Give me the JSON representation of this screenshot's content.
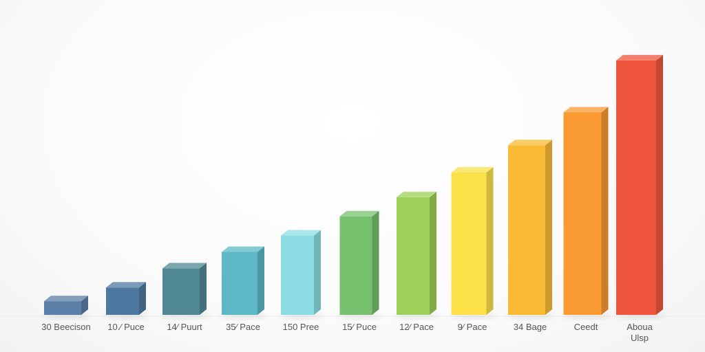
{
  "chart_data": {
    "type": "bar",
    "style": "3d-columns",
    "categories": [
      [
        "30 Beecison"
      ],
      [
        "10.⁄ Puce"
      ],
      [
        "14⁄ Puurt"
      ],
      [
        "35⁄ Pace"
      ],
      [
        "150 Pree"
      ],
      [
        "15⁄ Puce"
      ],
      [
        "12⁄ Pace"
      ],
      [
        "9⁄ Pace"
      ],
      [
        "34 Bage"
      ],
      [
        "Ceedt"
      ],
      [
        "Aboua",
        "Ulsp"
      ]
    ],
    "values": [
      5,
      10,
      17,
      23,
      29,
      36,
      43,
      52,
      62,
      74,
      93
    ],
    "colors": [
      "#5b7fa6",
      "#4d79a0",
      "#4f8893",
      "#5cb8c6",
      "#8bdde3",
      "#76c06e",
      "#9fd15a",
      "#fbe04a",
      "#f9bb33",
      "#f99a33",
      "#f0553d"
    ],
    "ylim": [
      0,
      100
    ],
    "grid": false,
    "legend": "none",
    "title": "",
    "xlabel": "",
    "ylabel": ""
  }
}
